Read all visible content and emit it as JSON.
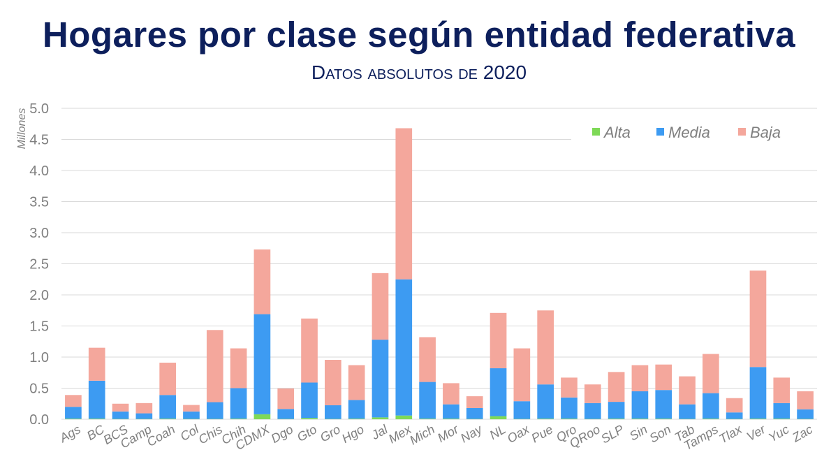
{
  "title": "Hogares por clase según entidad federativa",
  "subtitle": "Datos absolutos de 2020",
  "colors": {
    "alta": "#7ed957",
    "media": "#3d9bf2",
    "baja": "#f4a79c",
    "grid": "#d9d9d9",
    "title": "#0d1f5c",
    "axis_text": "#7f7f7f"
  },
  "chart_data": {
    "type": "bar",
    "stacked": true,
    "ylabel": "Millones",
    "xlabel": "",
    "ylim": [
      0,
      5.0
    ],
    "yticks": [
      "0.0",
      "0.5",
      "1.0",
      "1.5",
      "2.0",
      "2.5",
      "3.0",
      "3.5",
      "4.0",
      "4.5",
      "5.0"
    ],
    "grid": true,
    "legend_position": "top-right",
    "categories": [
      "Ags",
      "BC",
      "BCS",
      "Camp",
      "Coah",
      "Col",
      "Chis",
      "Chih",
      "CDMX",
      "Dgo",
      "Gto",
      "Gro",
      "Hgo",
      "Jal",
      "Mex",
      "Mich",
      "Mor",
      "Nay",
      "NL",
      "Oax",
      "Pue",
      "Qro",
      "QRoo",
      "SLP",
      "Sin",
      "Son",
      "Tab",
      "Tamps",
      "Tlax",
      "Ver",
      "Yuc",
      "Zac"
    ],
    "series": [
      {
        "name": "Alta",
        "color": "#7ed957",
        "values": [
          0.01,
          0.01,
          0.005,
          0.005,
          0.01,
          0.005,
          0.005,
          0.01,
          0.08,
          0.005,
          0.02,
          0.005,
          0.01,
          0.03,
          0.06,
          0.01,
          0.01,
          0.005,
          0.05,
          0.005,
          0.01,
          0.01,
          0.005,
          0.01,
          0.01,
          0.01,
          0.005,
          0.01,
          0.005,
          0.01,
          0.01,
          0.005
        ]
      },
      {
        "name": "Media",
        "color": "#3d9bf2",
        "values": [
          0.19,
          0.61,
          0.12,
          0.09,
          0.38,
          0.12,
          0.27,
          0.49,
          1.61,
          0.16,
          0.57,
          0.22,
          0.3,
          1.25,
          2.19,
          0.59,
          0.23,
          0.175,
          0.77,
          0.285,
          0.55,
          0.34,
          0.255,
          0.27,
          0.44,
          0.46,
          0.235,
          0.41,
          0.105,
          0.83,
          0.25,
          0.155
        ]
      },
      {
        "name": "Baja",
        "color": "#f4a79c",
        "values": [
          0.19,
          0.53,
          0.125,
          0.165,
          0.52,
          0.105,
          1.16,
          0.64,
          1.04,
          0.33,
          1.03,
          0.73,
          0.56,
          1.07,
          2.43,
          0.72,
          0.34,
          0.19,
          0.89,
          0.85,
          1.19,
          0.32,
          0.3,
          0.48,
          0.42,
          0.41,
          0.45,
          0.63,
          0.23,
          1.55,
          0.41,
          0.29
        ]
      }
    ]
  }
}
